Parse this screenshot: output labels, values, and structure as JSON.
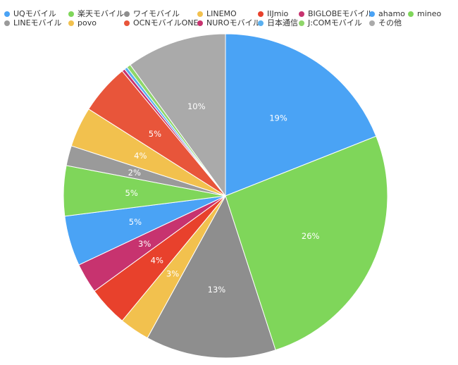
{
  "chart_data": {
    "type": "pie",
    "title": "",
    "legend_position": "top",
    "slices": [
      {
        "label": "UQモバイル",
        "value": 19,
        "display": "19%",
        "color": "#4aa3f5"
      },
      {
        "label": "楽天モバイル",
        "value": 26,
        "display": "26%",
        "color": "#7fd65a"
      },
      {
        "label": "ワイモバイル",
        "value": 13,
        "display": "13%",
        "color": "#8e8e8e"
      },
      {
        "label": "LINEMO",
        "value": 3,
        "display": "3%",
        "color": "#f2c14e"
      },
      {
        "label": "IIJmio",
        "value": 4,
        "display": "4%",
        "color": "#e8412c"
      },
      {
        "label": "BIGLOBEモバイル",
        "value": 3,
        "display": "3%",
        "color": "#c7336f"
      },
      {
        "label": "ahamo",
        "value": 5,
        "display": "5%",
        "color": "#4aa3f5"
      },
      {
        "label": "mineo",
        "value": 5,
        "display": "5%",
        "color": "#7fd65a"
      },
      {
        "label": "LINEモバイル",
        "value": 2,
        "display": "2%",
        "color": "#9a9a9a"
      },
      {
        "label": "povo",
        "value": 4,
        "display": "4%",
        "color": "#f2c14e"
      },
      {
        "label": "OCNモバイルONE",
        "value": 5,
        "display": "5%",
        "color": "#e8553a"
      },
      {
        "label": "NUROモバイル",
        "value": 0.3,
        "display": "",
        "color": "#c7336f"
      },
      {
        "label": "日本通信",
        "value": 0.3,
        "display": "",
        "color": "#5ab0f0"
      },
      {
        "label": "J:COMモバイル",
        "value": 0.4,
        "display": "",
        "color": "#8fd66a"
      },
      {
        "label": "その他",
        "value": 10,
        "display": "10%",
        "color": "#aaaaaa"
      }
    ]
  }
}
